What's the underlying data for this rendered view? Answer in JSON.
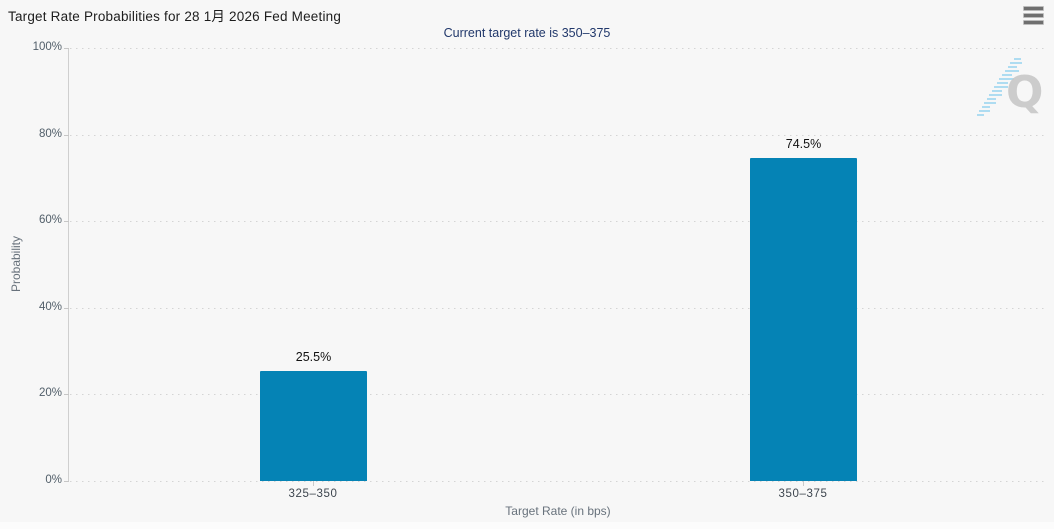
{
  "header": {
    "menu_tooltip": "Chart context menu"
  },
  "colors": {
    "background": "#f7f7f7",
    "bar": "#0583b5",
    "subtitle": "#21386b",
    "axis_line": "#cfcfcf",
    "grid_dots": "#d4d4d4",
    "watermark_q": "#c8c8c8",
    "watermark_dash": "#aedcf1"
  },
  "watermark": {
    "letter": "Q"
  },
  "chart_data": {
    "type": "bar",
    "title": "Target Rate Probabilities for 28 1月 2026 Fed Meeting",
    "subtitle": "Current target rate is 350–375",
    "categories": [
      "325–350",
      "350–375"
    ],
    "values": [
      25.5,
      74.5
    ],
    "value_labels": [
      "25.5%",
      "74.5%"
    ],
    "xlabel": "Target Rate (in bps)",
    "ylabel": "Probability",
    "ylim": [
      0,
      100
    ],
    "yticks": [
      "0%",
      "20%",
      "40%",
      "60%",
      "80%",
      "100%"
    ],
    "grid": "horizontal dotted",
    "legend": "none",
    "bar_color": "#0583b5"
  }
}
